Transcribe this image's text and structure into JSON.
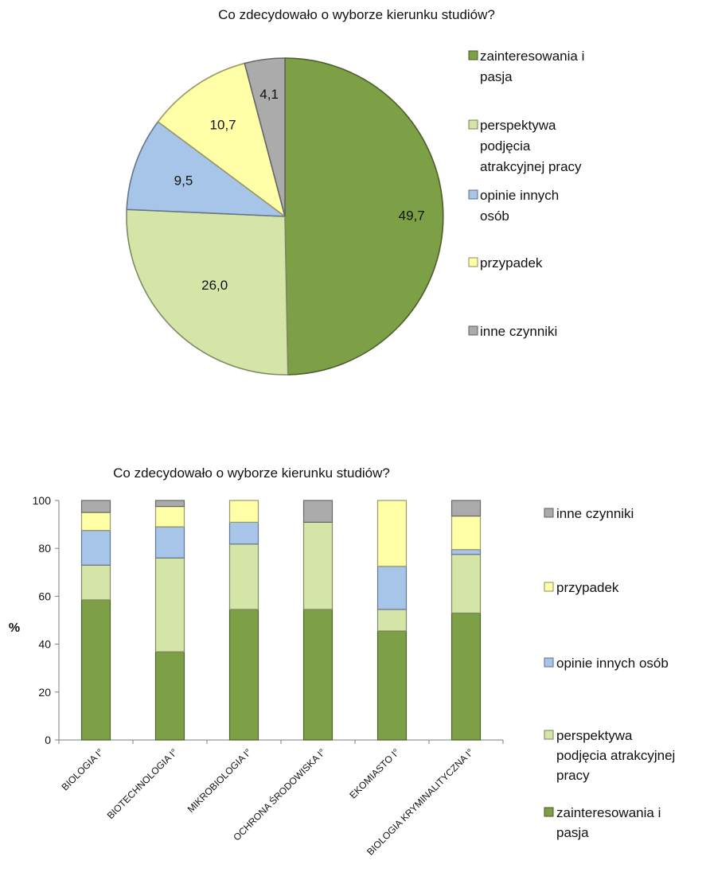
{
  "colors": {
    "zainteresowania": "#7da046",
    "perspektywa": "#d5e5a8",
    "opinie": "#a7c5e9",
    "przypadek": "#ffffa8",
    "inne": "#ababab"
  },
  "chart_data": [
    {
      "type": "pie",
      "title": "Co zdecydowało o wyborze kierunku studiów?",
      "slices": [
        {
          "key": "zainteresowania",
          "label": "zainteresowania i pasja",
          "value": 49.7,
          "value_label": "49,7"
        },
        {
          "key": "perspektywa",
          "label": "perspektywa podjęcia atrakcyjnej pracy",
          "value": 26.0,
          "value_label": "26,0"
        },
        {
          "key": "opinie",
          "label": "opinie innych osób",
          "value": 9.5,
          "value_label": "9,5"
        },
        {
          "key": "przypadek",
          "label": "przypadek",
          "value": 10.7,
          "value_label": "10,7"
        },
        {
          "key": "inne",
          "label": "inne czynniki",
          "value": 4.1,
          "value_label": "4,1"
        }
      ],
      "legend": [
        {
          "key": "zainteresowania",
          "lines": [
            "zainteresowania i",
            "pasja"
          ]
        },
        {
          "key": "perspektywa",
          "lines": [
            "perspektywa",
            "podjęcia",
            "atrakcyjnej pracy"
          ]
        },
        {
          "key": "opinie",
          "lines": [
            "opinie innych",
            "osób"
          ]
        },
        {
          "key": "przypadek",
          "lines": [
            "przypadek"
          ]
        },
        {
          "key": "inne",
          "lines": [
            "inne czynniki"
          ]
        }
      ],
      "legend_position": "right"
    },
    {
      "type": "bar",
      "stacked": true,
      "title": "Co zdecydowało o wyborze kierunku studiów?",
      "ylabel": "%",
      "ylim": [
        0,
        100
      ],
      "yticks": [
        0,
        20,
        40,
        60,
        80,
        100
      ],
      "categories": [
        "BIOLOGIA I°",
        "BIOTECHNOLOGIA I°",
        "MIKROBIOLOGIA I°",
        "OCHRONA ŚRODOWISKA I°",
        "EKOMIASTO I°",
        "BIOLOGIA KRYMINALITYCZNA I°"
      ],
      "series": [
        {
          "key": "zainteresowania",
          "name": "zainteresowania i pasja",
          "values": [
            58.5,
            36.8,
            54.5,
            54.5,
            45.5,
            53.0
          ]
        },
        {
          "key": "perspektywa",
          "name": "perspektywa podjęcia atrakcyjnej pracy",
          "values": [
            14.5,
            39.2,
            27.3,
            36.4,
            9.0,
            24.5
          ]
        },
        {
          "key": "opinie",
          "name": "opinie innych osób",
          "values": [
            14.5,
            13.0,
            9.1,
            0,
            18.0,
            2.0
          ]
        },
        {
          "key": "przypadek",
          "name": "przypadek",
          "values": [
            7.5,
            8.5,
            9.1,
            0,
            27.5,
            14.0
          ]
        },
        {
          "key": "inne",
          "name": "inne czynniki",
          "values": [
            5.0,
            2.5,
            0,
            9.1,
            0,
            6.5
          ]
        }
      ],
      "legend": [
        {
          "key": "inne",
          "lines": [
            "inne czynniki"
          ]
        },
        {
          "key": "przypadek",
          "lines": [
            "przypadek"
          ]
        },
        {
          "key": "opinie",
          "lines": [
            "opinie innych osób"
          ]
        },
        {
          "key": "perspektywa",
          "lines": [
            "perspektywa",
            "podjęcia atrakcyjnej",
            "pracy"
          ]
        },
        {
          "key": "zainteresowania",
          "lines": [
            "zainteresowania i",
            "pasja"
          ]
        }
      ],
      "legend_position": "right"
    }
  ]
}
